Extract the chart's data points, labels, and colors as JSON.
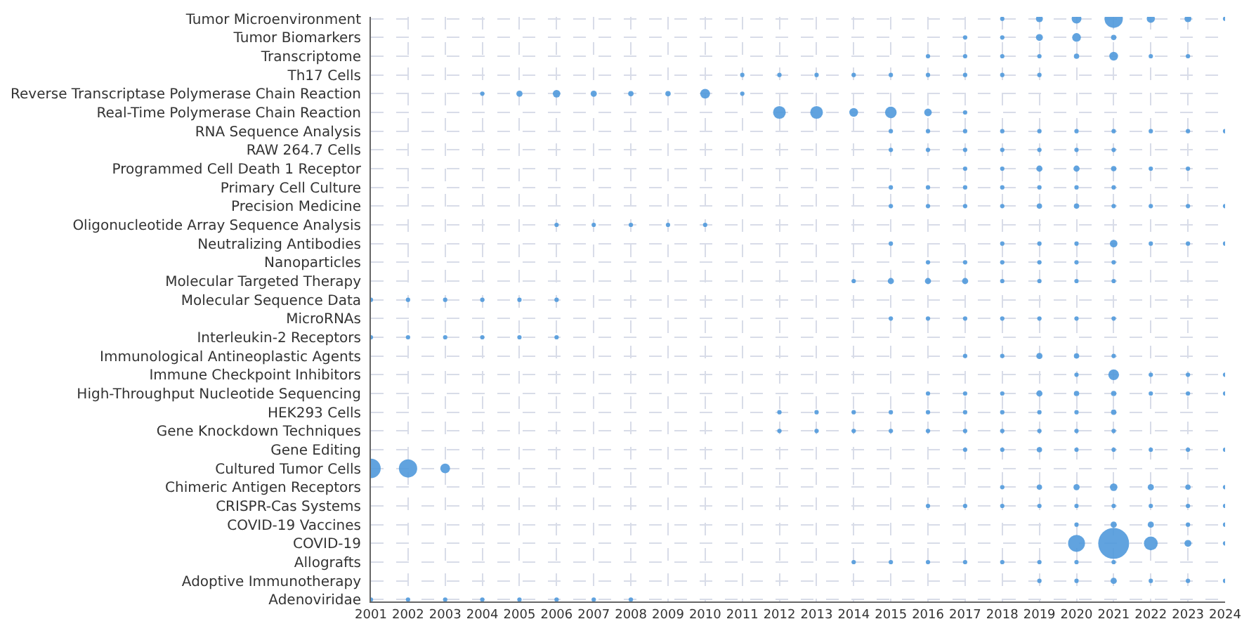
{
  "chart_data": {
    "type": "bubble",
    "orientation": "horizontal",
    "grid": true,
    "categories": [
      "Tumor Microenvironment",
      "Tumor Biomarkers",
      "Transcriptome",
      "Th17 Cells",
      "Reverse Transcriptase Polymerase Chain Reaction",
      "Real-Time Polymerase Chain Reaction",
      "RNA Sequence Analysis",
      "RAW 264.7 Cells",
      "Programmed Cell Death 1 Receptor",
      "Primary Cell Culture",
      "Precision Medicine",
      "Oligonucleotide Array Sequence Analysis",
      "Neutralizing Antibodies",
      "Nanoparticles",
      "Molecular Targeted Therapy",
      "Molecular Sequence Data",
      "MicroRNAs",
      "Interleukin-2 Receptors",
      "Immunological Antineoplastic Agents",
      "Immune Checkpoint Inhibitors",
      "High-Throughput Nucleotide Sequencing",
      "HEK293 Cells",
      "Gene Knockdown Techniques",
      "Gene Editing",
      "Cultured Tumor Cells",
      "Chimeric Antigen Receptors",
      "CRISPR-Cas Systems",
      "COVID-19 Vaccines",
      "COVID-19",
      "Allografts",
      "Adoptive Immunotherapy",
      "Adenoviridae"
    ],
    "xlim": [
      2001,
      2024
    ],
    "xticks": [
      2001,
      2002,
      2003,
      2004,
      2005,
      2006,
      2007,
      2008,
      2009,
      2010,
      2011,
      2012,
      2013,
      2014,
      2015,
      2016,
      2017,
      2018,
      2019,
      2020,
      2021,
      2022,
      2023,
      2024
    ],
    "series": [
      {
        "color": "#5099dc",
        "values": [
          null,
          null,
          null,
          null,
          null,
          null,
          null,
          null,
          null,
          null,
          null,
          null,
          null,
          null,
          null,
          2001,
          null,
          2001,
          null,
          null,
          null,
          null,
          null,
          null,
          2001,
          null,
          null,
          null,
          null,
          null,
          null,
          2001
        ],
        "sizes": [
          null,
          null,
          null,
          null,
          null,
          null,
          null,
          null,
          null,
          null,
          null,
          null,
          null,
          null,
          null,
          0.02,
          null,
          0.02,
          null,
          null,
          null,
          null,
          null,
          null,
          0.4,
          null,
          null,
          null,
          null,
          null,
          null,
          0.02
        ]
      },
      {
        "color": "#5099dc",
        "values": [
          null,
          null,
          null,
          null,
          null,
          null,
          null,
          null,
          null,
          null,
          null,
          null,
          null,
          null,
          null,
          2002,
          null,
          2002,
          null,
          null,
          null,
          null,
          null,
          null,
          2002,
          null,
          null,
          null,
          null,
          null,
          null,
          2002
        ],
        "sizes": [
          null,
          null,
          null,
          null,
          null,
          null,
          null,
          null,
          null,
          null,
          null,
          null,
          null,
          null,
          null,
          0.02,
          null,
          0.02,
          null,
          null,
          null,
          null,
          null,
          null,
          0.35,
          null,
          null,
          null,
          null,
          null,
          null,
          0.02
        ]
      },
      {
        "color": "#5099dc",
        "values": [
          null,
          null,
          null,
          null,
          null,
          null,
          null,
          null,
          null,
          null,
          null,
          null,
          null,
          null,
          null,
          2003,
          null,
          2003,
          null,
          null,
          null,
          null,
          null,
          null,
          2003,
          null,
          null,
          null,
          null,
          null,
          null,
          2003
        ],
        "sizes": [
          null,
          null,
          null,
          null,
          null,
          null,
          null,
          null,
          null,
          null,
          null,
          null,
          null,
          null,
          null,
          0.02,
          null,
          0.02,
          null,
          null,
          null,
          null,
          null,
          null,
          0.1,
          null,
          null,
          null,
          null,
          null,
          null,
          0.02
        ]
      },
      {
        "color": "#5099dc",
        "values": [
          null,
          null,
          null,
          null,
          2004,
          null,
          null,
          null,
          null,
          null,
          null,
          null,
          null,
          null,
          null,
          2004,
          null,
          2004,
          null,
          null,
          null,
          null,
          null,
          null,
          null,
          null,
          null,
          null,
          null,
          null,
          null,
          2004
        ],
        "sizes": [
          null,
          null,
          null,
          null,
          0.02,
          null,
          null,
          null,
          null,
          null,
          null,
          null,
          null,
          null,
          null,
          0.02,
          null,
          0.02,
          null,
          null,
          null,
          null,
          null,
          null,
          null,
          null,
          null,
          null,
          null,
          null,
          null,
          0.02
        ]
      },
      {
        "color": "#5099dc",
        "values": [
          null,
          null,
          null,
          null,
          2005,
          null,
          null,
          null,
          null,
          null,
          null,
          null,
          null,
          null,
          null,
          2005,
          null,
          2005,
          null,
          null,
          null,
          null,
          null,
          null,
          null,
          null,
          null,
          null,
          null,
          null,
          null,
          2005
        ],
        "sizes": [
          null,
          null,
          null,
          null,
          0.04,
          null,
          null,
          null,
          null,
          null,
          null,
          null,
          null,
          null,
          null,
          0.02,
          null,
          0.02,
          null,
          null,
          null,
          null,
          null,
          null,
          null,
          null,
          null,
          null,
          null,
          null,
          null,
          0.02
        ]
      },
      {
        "color": "#5099dc",
        "values": [
          null,
          null,
          null,
          null,
          2006,
          null,
          null,
          null,
          null,
          null,
          null,
          2006,
          null,
          null,
          null,
          2006,
          null,
          2006,
          null,
          null,
          null,
          null,
          null,
          null,
          null,
          null,
          null,
          null,
          null,
          null,
          null,
          2006
        ],
        "sizes": [
          null,
          null,
          null,
          null,
          0.06,
          null,
          null,
          null,
          null,
          null,
          null,
          0.02,
          null,
          null,
          null,
          0.02,
          null,
          0.02,
          null,
          null,
          null,
          null,
          null,
          null,
          null,
          null,
          null,
          null,
          null,
          null,
          null,
          0.02
        ]
      },
      {
        "color": "#5099dc",
        "values": [
          null,
          null,
          null,
          null,
          2007,
          null,
          null,
          null,
          null,
          null,
          null,
          2007,
          null,
          null,
          null,
          null,
          null,
          null,
          null,
          null,
          null,
          null,
          null,
          null,
          null,
          null,
          null,
          null,
          null,
          null,
          null,
          2007
        ],
        "sizes": [
          null,
          null,
          null,
          null,
          0.04,
          null,
          null,
          null,
          null,
          null,
          null,
          0.02,
          null,
          null,
          null,
          null,
          null,
          null,
          null,
          null,
          null,
          null,
          null,
          null,
          null,
          null,
          null,
          null,
          null,
          null,
          null,
          0.02
        ]
      },
      {
        "color": "#5099dc",
        "values": [
          null,
          null,
          null,
          null,
          2008,
          null,
          null,
          null,
          null,
          null,
          null,
          2008,
          null,
          null,
          null,
          null,
          null,
          null,
          null,
          null,
          null,
          null,
          null,
          null,
          null,
          null,
          null,
          null,
          null,
          null,
          null,
          2008
        ],
        "sizes": [
          null,
          null,
          null,
          null,
          0.03,
          null,
          null,
          null,
          null,
          null,
          null,
          0.02,
          null,
          null,
          null,
          null,
          null,
          null,
          null,
          null,
          null,
          null,
          null,
          null,
          null,
          null,
          null,
          null,
          null,
          null,
          null,
          0.02
        ]
      },
      {
        "color": "#5099dc",
        "values": [
          null,
          null,
          null,
          null,
          2009,
          null,
          null,
          null,
          null,
          null,
          null,
          2009,
          null,
          null,
          null,
          null,
          null,
          null,
          null,
          null,
          null,
          null,
          null,
          null,
          null,
          null,
          null,
          null,
          null,
          null,
          null,
          null
        ],
        "sizes": [
          null,
          null,
          null,
          null,
          0.03,
          null,
          null,
          null,
          null,
          null,
          null,
          0.02,
          null,
          null,
          null,
          null,
          null,
          null,
          null,
          null,
          null,
          null,
          null,
          null,
          null,
          null,
          null,
          null,
          null,
          null,
          null,
          null
        ]
      },
      {
        "color": "#5099dc",
        "values": [
          null,
          null,
          null,
          null,
          2010,
          null,
          null,
          null,
          null,
          null,
          null,
          2010,
          null,
          null,
          null,
          null,
          null,
          null,
          null,
          null,
          null,
          null,
          null,
          null,
          null,
          null,
          null,
          null,
          null,
          null,
          null,
          null
        ],
        "sizes": [
          null,
          null,
          null,
          null,
          0.1,
          null,
          null,
          null,
          null,
          null,
          null,
          0.02,
          null,
          null,
          null,
          null,
          null,
          null,
          null,
          null,
          null,
          null,
          null,
          null,
          null,
          null,
          null,
          null,
          null,
          null,
          null,
          null
        ]
      },
      {
        "color": "#5099dc",
        "values": [
          null,
          null,
          null,
          2011,
          2011,
          null,
          null,
          null,
          null,
          null,
          null,
          null,
          null,
          null,
          null,
          null,
          null,
          null,
          null,
          null,
          null,
          null,
          null,
          null,
          null,
          null,
          null,
          null,
          null,
          null,
          null,
          null
        ],
        "sizes": [
          null,
          null,
          null,
          0.02,
          0.02,
          null,
          null,
          null,
          null,
          null,
          null,
          null,
          null,
          null,
          null,
          null,
          null,
          null,
          null,
          null,
          null,
          null,
          null,
          null,
          null,
          null,
          null,
          null,
          null,
          null,
          null,
          null
        ]
      },
      {
        "color": "#5099dc",
        "values": [
          null,
          null,
          null,
          2012,
          null,
          2012,
          null,
          null,
          null,
          null,
          null,
          null,
          null,
          null,
          null,
          null,
          null,
          null,
          null,
          null,
          null,
          2012,
          2012,
          null,
          null,
          null,
          null,
          null,
          null,
          null,
          null,
          null
        ],
        "sizes": [
          null,
          null,
          null,
          0.02,
          null,
          0.17,
          null,
          null,
          null,
          null,
          null,
          null,
          null,
          null,
          null,
          null,
          null,
          null,
          null,
          null,
          null,
          0.02,
          0.02,
          null,
          null,
          null,
          null,
          null,
          null,
          null,
          null,
          null
        ]
      },
      {
        "color": "#5099dc",
        "values": [
          null,
          null,
          null,
          2013,
          null,
          2013,
          null,
          null,
          null,
          null,
          null,
          null,
          null,
          null,
          null,
          null,
          null,
          null,
          null,
          null,
          null,
          2013,
          2013,
          null,
          null,
          null,
          null,
          null,
          null,
          null,
          null,
          null
        ],
        "sizes": [
          null,
          null,
          null,
          0.02,
          null,
          0.17,
          null,
          null,
          null,
          null,
          null,
          null,
          null,
          null,
          null,
          null,
          null,
          null,
          null,
          null,
          null,
          0.02,
          0.02,
          null,
          null,
          null,
          null,
          null,
          null,
          null,
          null,
          null
        ]
      },
      {
        "color": "#5099dc",
        "values": [
          null,
          null,
          null,
          2014,
          null,
          2014,
          null,
          null,
          null,
          null,
          null,
          null,
          null,
          null,
          2014,
          null,
          null,
          null,
          null,
          null,
          null,
          2014,
          2014,
          null,
          null,
          null,
          null,
          null,
          null,
          2014,
          null,
          null
        ],
        "sizes": [
          null,
          null,
          null,
          0.02,
          null,
          0.08,
          null,
          null,
          null,
          null,
          null,
          null,
          null,
          null,
          0.02,
          null,
          null,
          null,
          null,
          null,
          null,
          0.02,
          0.02,
          null,
          null,
          null,
          null,
          null,
          null,
          0.02,
          null,
          null
        ]
      },
      {
        "color": "#5099dc",
        "values": [
          null,
          null,
          null,
          2015,
          null,
          2015,
          2015,
          2015,
          null,
          2015,
          2015,
          null,
          2015,
          null,
          2015,
          null,
          2015,
          null,
          null,
          null,
          null,
          2015,
          2015,
          null,
          null,
          null,
          null,
          null,
          null,
          2015,
          null,
          null
        ],
        "sizes": [
          null,
          null,
          null,
          0.02,
          null,
          0.14,
          0.02,
          0.02,
          null,
          0.02,
          0.02,
          null,
          0.02,
          null,
          0.04,
          null,
          0.02,
          null,
          null,
          null,
          null,
          0.02,
          0.02,
          null,
          null,
          null,
          null,
          null,
          null,
          0.02,
          null,
          null
        ]
      },
      {
        "color": "#5099dc",
        "values": [
          null,
          null,
          2016,
          2016,
          null,
          2016,
          2016,
          2016,
          null,
          2016,
          2016,
          null,
          null,
          2016,
          2016,
          null,
          2016,
          null,
          null,
          null,
          2016,
          2016,
          2016,
          null,
          null,
          null,
          2016,
          null,
          null,
          2016,
          null,
          null
        ],
        "sizes": [
          null,
          null,
          0.02,
          0.02,
          null,
          0.06,
          0.02,
          0.02,
          null,
          0.02,
          0.02,
          null,
          null,
          0.02,
          0.04,
          null,
          0.02,
          null,
          null,
          null,
          0.02,
          0.02,
          0.02,
          null,
          null,
          null,
          0.02,
          null,
          null,
          0.02,
          null,
          null
        ]
      },
      {
        "color": "#5099dc",
        "values": [
          null,
          2017,
          2017,
          2017,
          null,
          2017,
          2017,
          2017,
          2017,
          2017,
          2017,
          null,
          null,
          2017,
          2017,
          null,
          2017,
          null,
          2017,
          null,
          2017,
          2017,
          2017,
          2017,
          null,
          null,
          2017,
          null,
          null,
          2017,
          null,
          null
        ],
        "sizes": [
          null,
          0.02,
          0.02,
          0.02,
          null,
          0.02,
          0.02,
          0.02,
          0.02,
          0.02,
          0.02,
          null,
          null,
          0.02,
          0.04,
          null,
          0.02,
          null,
          0.02,
          null,
          0.02,
          0.02,
          0.02,
          0.02,
          null,
          null,
          0.02,
          null,
          null,
          0.02,
          null,
          null
        ]
      },
      {
        "color": "#5099dc",
        "values": [
          2018,
          2018,
          2018,
          2018,
          null,
          null,
          2018,
          2018,
          2018,
          2018,
          2018,
          null,
          2018,
          2018,
          2018,
          null,
          2018,
          null,
          2018,
          null,
          2018,
          2018,
          2018,
          2018,
          null,
          2018,
          2018,
          null,
          null,
          2018,
          null,
          null
        ],
        "sizes": [
          0.02,
          0.02,
          0.02,
          0.02,
          null,
          null,
          0.02,
          0.02,
          0.02,
          0.02,
          0.02,
          null,
          0.02,
          0.02,
          0.02,
          null,
          0.02,
          null,
          0.02,
          null,
          0.02,
          0.02,
          0.02,
          0.02,
          null,
          0.02,
          0.02,
          null,
          null,
          0.02,
          null,
          null
        ]
      },
      {
        "color": "#5099dc",
        "values": [
          2019,
          2019,
          2019,
          2019,
          null,
          null,
          2019,
          2019,
          2019,
          2019,
          2019,
          null,
          2019,
          2019,
          2019,
          null,
          2019,
          null,
          2019,
          null,
          2019,
          2019,
          2019,
          2019,
          null,
          2019,
          2019,
          null,
          null,
          2019,
          2019,
          null
        ],
        "sizes": [
          0.05,
          0.05,
          0.02,
          0.02,
          null,
          null,
          0.02,
          0.02,
          0.04,
          0.02,
          0.03,
          null,
          0.02,
          0.02,
          0.02,
          null,
          0.02,
          null,
          0.04,
          null,
          0.04,
          0.02,
          0.02,
          0.03,
          null,
          0.03,
          0.02,
          null,
          null,
          0.02,
          0.02,
          null
        ]
      },
      {
        "color": "#5099dc",
        "values": [
          2020,
          2020,
          2020,
          null,
          null,
          null,
          2020,
          2020,
          2020,
          2020,
          2020,
          null,
          2020,
          2020,
          2020,
          null,
          2020,
          null,
          2020,
          2020,
          2020,
          2020,
          2020,
          2020,
          null,
          2020,
          2020,
          2020,
          2020,
          2020,
          2020,
          null
        ],
        "sizes": [
          0.1,
          0.08,
          0.03,
          null,
          null,
          null,
          0.02,
          0.02,
          0.04,
          0.02,
          0.03,
          null,
          0.02,
          0.02,
          0.02,
          null,
          0.02,
          null,
          0.03,
          0.02,
          0.03,
          0.02,
          0.02,
          0.02,
          null,
          0.04,
          0.02,
          0.02,
          0.3,
          0.02,
          0.02,
          null
        ]
      },
      {
        "color": "#5099dc",
        "values": [
          2021,
          2021,
          2021,
          null,
          null,
          null,
          2021,
          2021,
          2021,
          2021,
          2021,
          null,
          2021,
          2021,
          2021,
          null,
          2021,
          null,
          2021,
          2021,
          2021,
          2021,
          2021,
          2021,
          null,
          2021,
          2021,
          2021,
          2021,
          2021,
          2021,
          null
        ],
        "sizes": [
          0.35,
          0.03,
          0.08,
          null,
          null,
          null,
          0.02,
          0.02,
          0.03,
          0.02,
          0.02,
          null,
          0.06,
          0.02,
          0.02,
          null,
          0.02,
          null,
          0.02,
          0.12,
          0.03,
          0.03,
          0.02,
          0.02,
          null,
          0.06,
          0.02,
          0.04,
          1,
          0.02,
          0.04,
          null
        ]
      },
      {
        "color": "#5099dc",
        "values": [
          2022,
          null,
          2022,
          null,
          null,
          null,
          2022,
          null,
          2022,
          null,
          2022,
          null,
          2022,
          null,
          null,
          null,
          null,
          null,
          null,
          2022,
          2022,
          null,
          null,
          2022,
          null,
          2022,
          2022,
          2022,
          2022,
          null,
          2022,
          null
        ],
        "sizes": [
          0.07,
          null,
          0.02,
          null,
          null,
          null,
          0.02,
          null,
          0.02,
          null,
          0.02,
          null,
          0.02,
          null,
          null,
          null,
          null,
          null,
          null,
          0.02,
          0.02,
          null,
          null,
          0.02,
          null,
          0.04,
          0.02,
          0.04,
          0.2,
          null,
          0.02,
          null
        ]
      },
      {
        "color": "#5099dc",
        "values": [
          2023,
          null,
          2023,
          null,
          null,
          null,
          2023,
          null,
          2023,
          null,
          2023,
          null,
          2023,
          null,
          null,
          null,
          null,
          null,
          null,
          2023,
          2023,
          null,
          null,
          2023,
          null,
          2023,
          2023,
          2023,
          2023,
          null,
          2023,
          null
        ],
        "sizes": [
          0.05,
          null,
          0.02,
          null,
          null,
          null,
          0.02,
          null,
          0.02,
          null,
          0.02,
          null,
          0.02,
          null,
          null,
          null,
          null,
          null,
          null,
          0.02,
          0.02,
          null,
          null,
          0.02,
          null,
          0.03,
          0.02,
          0.02,
          0.05,
          null,
          0.02,
          null
        ]
      },
      {
        "color": "#5099dc",
        "values": [
          2024,
          null,
          null,
          null,
          null,
          null,
          2024,
          null,
          null,
          null,
          2024,
          null,
          2024,
          null,
          null,
          null,
          null,
          null,
          null,
          2024,
          2024,
          null,
          null,
          2024,
          null,
          2024,
          2024,
          2024,
          2024,
          null,
          2024,
          null
        ],
        "sizes": [
          0.02,
          null,
          null,
          null,
          null,
          null,
          0.02,
          null,
          null,
          null,
          0.02,
          null,
          0.02,
          null,
          null,
          null,
          null,
          null,
          null,
          0.02,
          0.02,
          null,
          null,
          0.02,
          null,
          0.02,
          0.02,
          0.02,
          0.02,
          null,
          0.02,
          null
        ]
      }
    ]
  }
}
